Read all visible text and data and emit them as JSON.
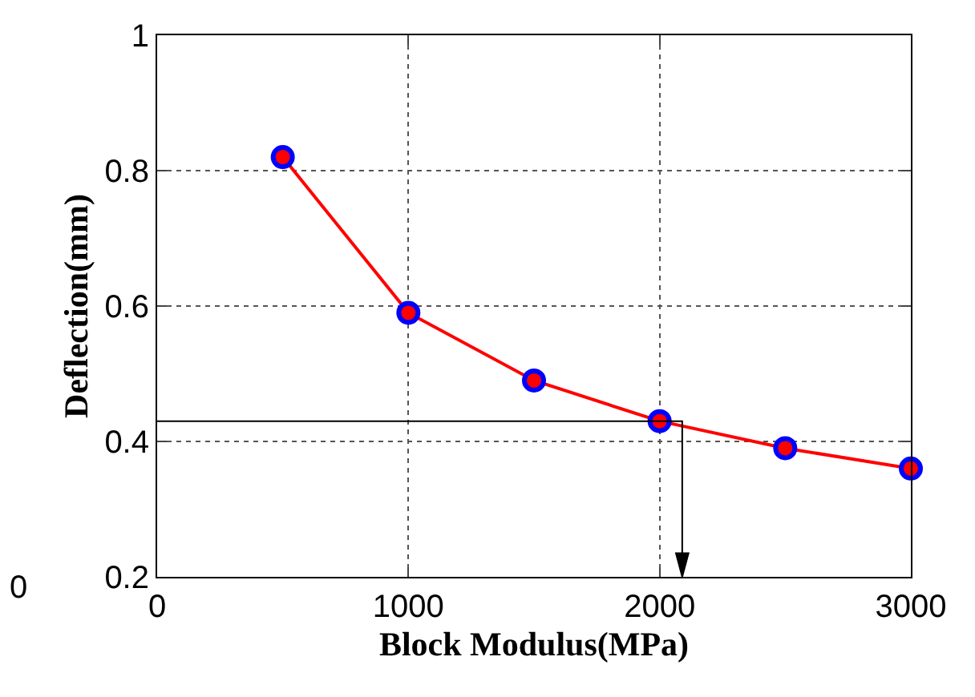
{
  "chart_data": {
    "type": "line",
    "xlabel": "Block Modulus(MPa)",
    "ylabel": "Deflection(mm)",
    "x": [
      500,
      1000,
      1500,
      2000,
      2500,
      3000
    ],
    "series": [
      {
        "color": "#ff0000",
        "values": [
          0.82,
          0.59,
          0.49,
          0.43,
          0.39,
          0.36
        ],
        "marker": "circle"
      }
    ],
    "xlim": [
      0,
      3000
    ],
    "xticks": [
      0,
      1000,
      2000,
      3000
    ],
    "ylim": [
      0.2,
      1
    ],
    "yticks": [
      0.2,
      0.4,
      0.6,
      0.8,
      1
    ],
    "grid": true,
    "annotations": [
      "0"
    ]
  }
}
